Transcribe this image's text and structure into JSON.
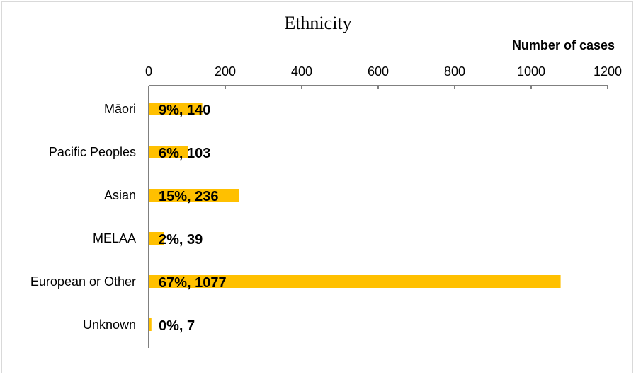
{
  "chart_data": {
    "type": "bar",
    "orientation": "horizontal",
    "title": "Ethnicity",
    "xlabel": "Number of cases",
    "ylabel": "",
    "xlim": [
      0,
      1200
    ],
    "x_ticks": [
      "0",
      "200",
      "400",
      "600",
      "800",
      "1000",
      "1200"
    ],
    "x_axis_position": "top",
    "categories": [
      "Māori",
      "Pacific Peoples",
      "Asian",
      "MELAA",
      "European or Other",
      "Unknown"
    ],
    "values": [
      140,
      103,
      236,
      39,
      1077,
      7
    ],
    "data_labels": [
      "9%, 140",
      "6%, 103",
      "15%, 236",
      "2%, 39",
      "67%, 1077",
      "0%, 7"
    ],
    "bar_color": "#FFC000",
    "grid": false,
    "legend": "none"
  }
}
